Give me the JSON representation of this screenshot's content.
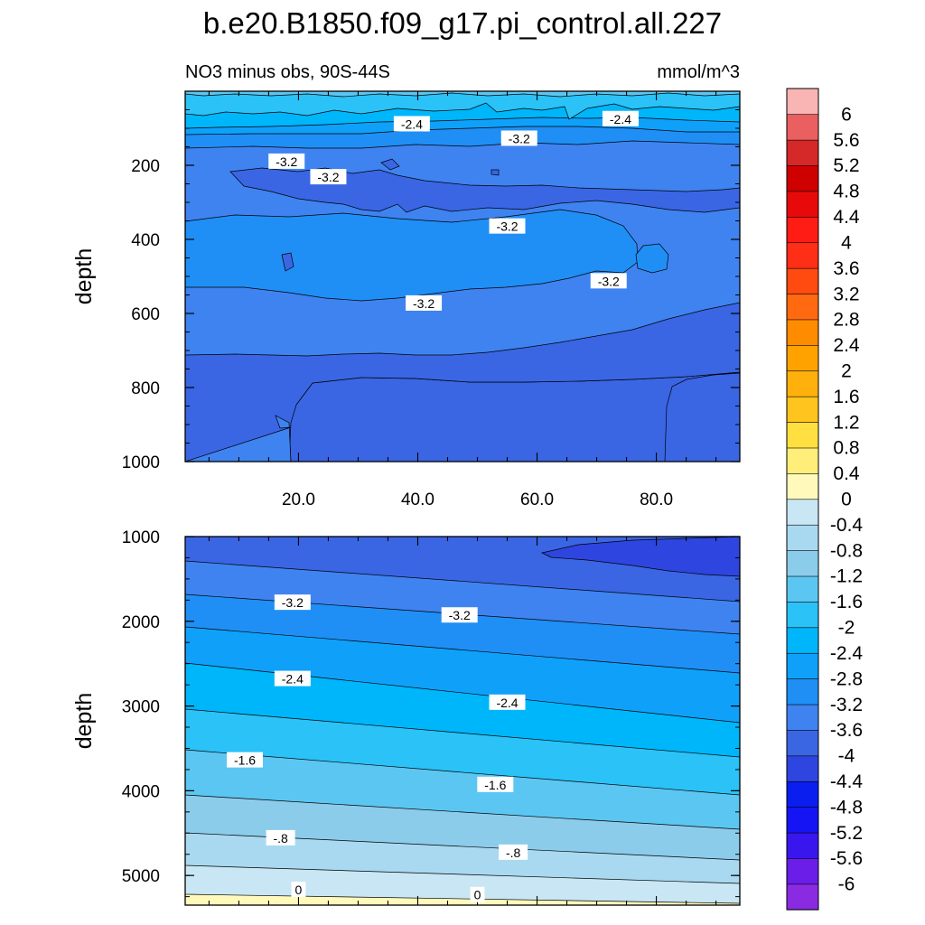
{
  "title": "b.e20.B1850.f09_g17.pi_control.all.227",
  "left_subtitle": "NO3 minus obs, 90S-44S",
  "right_subtitle": "mmol/m^3",
  "colorbar": {
    "levels": [
      "-6",
      "-5.6",
      "-5.2",
      "-4.8",
      "-4.4",
      "-4",
      "-3.6",
      "-3.2",
      "-2.8",
      "-2.4",
      "-2",
      "-1.6",
      "-1.2",
      "-0.8",
      "-0.4",
      "0",
      "0.4",
      "0.8",
      "1.2",
      "1.6",
      "2",
      "2.4",
      "2.8",
      "3.2",
      "3.6",
      "4",
      "4.4",
      "4.8",
      "5.2",
      "5.6",
      "6"
    ],
    "colors": [
      "#8a2be2",
      "#6a1ee8",
      "#3a16ee",
      "#1414f5",
      "#0a1ef0",
      "#2e45e0",
      "#3a66e4",
      "#3f83f0",
      "#1f8ff5",
      "#0fa1fa",
      "#00b6fa",
      "#2ac2f7",
      "#5cc6f2",
      "#8ccceb",
      "#a9d9f0",
      "#c8e6f4",
      "#fffabb",
      "#ffee7a",
      "#ffe040",
      "#ffc41e",
      "#ffb00d",
      "#ffa200",
      "#ff8c00",
      "#ff6a10",
      "#ff4a10",
      "#ff2e16",
      "#ff1c14",
      "#e80a0a",
      "#cf0000",
      "#d52828",
      "#ea6060",
      "#f9b4b4"
    ]
  },
  "chart_data": [
    {
      "type": "contour",
      "panel": "upper",
      "ylabel": "depth",
      "y_reversed": true,
      "ylim": [
        1000,
        0
      ],
      "y_ticks": [
        200,
        400,
        600,
        800,
        1000
      ],
      "xlim": [
        1,
        94
      ],
      "x_ticks": [
        20,
        40,
        60,
        80
      ],
      "x_tick_labels": [
        "20.0",
        "40.0",
        "60.0",
        "80.0"
      ],
      "contour_labels": [
        {
          "text": "-2.4",
          "x": 39,
          "y": 89
        },
        {
          "text": "-2.4",
          "x": 74,
          "y": 75
        },
        {
          "text": "-3.2",
          "x": 57,
          "y": 128
        },
        {
          "text": "-3.2",
          "x": 18,
          "y": 190
        },
        {
          "text": "-3.2",
          "x": 25,
          "y": 232
        },
        {
          "text": "-3.2",
          "x": 55,
          "y": 365
        },
        {
          "text": "-3.2",
          "x": 72,
          "y": 513
        },
        {
          "text": "-3.2",
          "x": 41,
          "y": 573
        }
      ]
    },
    {
      "type": "contour",
      "panel": "lower",
      "ylabel": "depth",
      "y_reversed": true,
      "ylim": [
        5350,
        1000
      ],
      "y_ticks": [
        1000,
        2000,
        3000,
        4000,
        5000
      ],
      "xlim": [
        1,
        94
      ],
      "contour_labels": [
        {
          "text": "-3.2",
          "x": 19,
          "y": 1780
        },
        {
          "text": "-3.2",
          "x": 47,
          "y": 1930
        },
        {
          "text": "-2.4",
          "x": 19,
          "y": 2680
        },
        {
          "text": "-2.4",
          "x": 55,
          "y": 2960
        },
        {
          "text": "-1.6",
          "x": 11,
          "y": 3640
        },
        {
          "text": "-1.6",
          "x": 53,
          "y": 3930
        },
        {
          "text": "-.8",
          "x": 17,
          "y": 4560
        },
        {
          "text": "-.8",
          "x": 56,
          "y": 4730
        },
        {
          "text": "0",
          "x": 20,
          "y": 5170
        },
        {
          "text": "0",
          "x": 50,
          "y": 5230
        }
      ]
    }
  ]
}
